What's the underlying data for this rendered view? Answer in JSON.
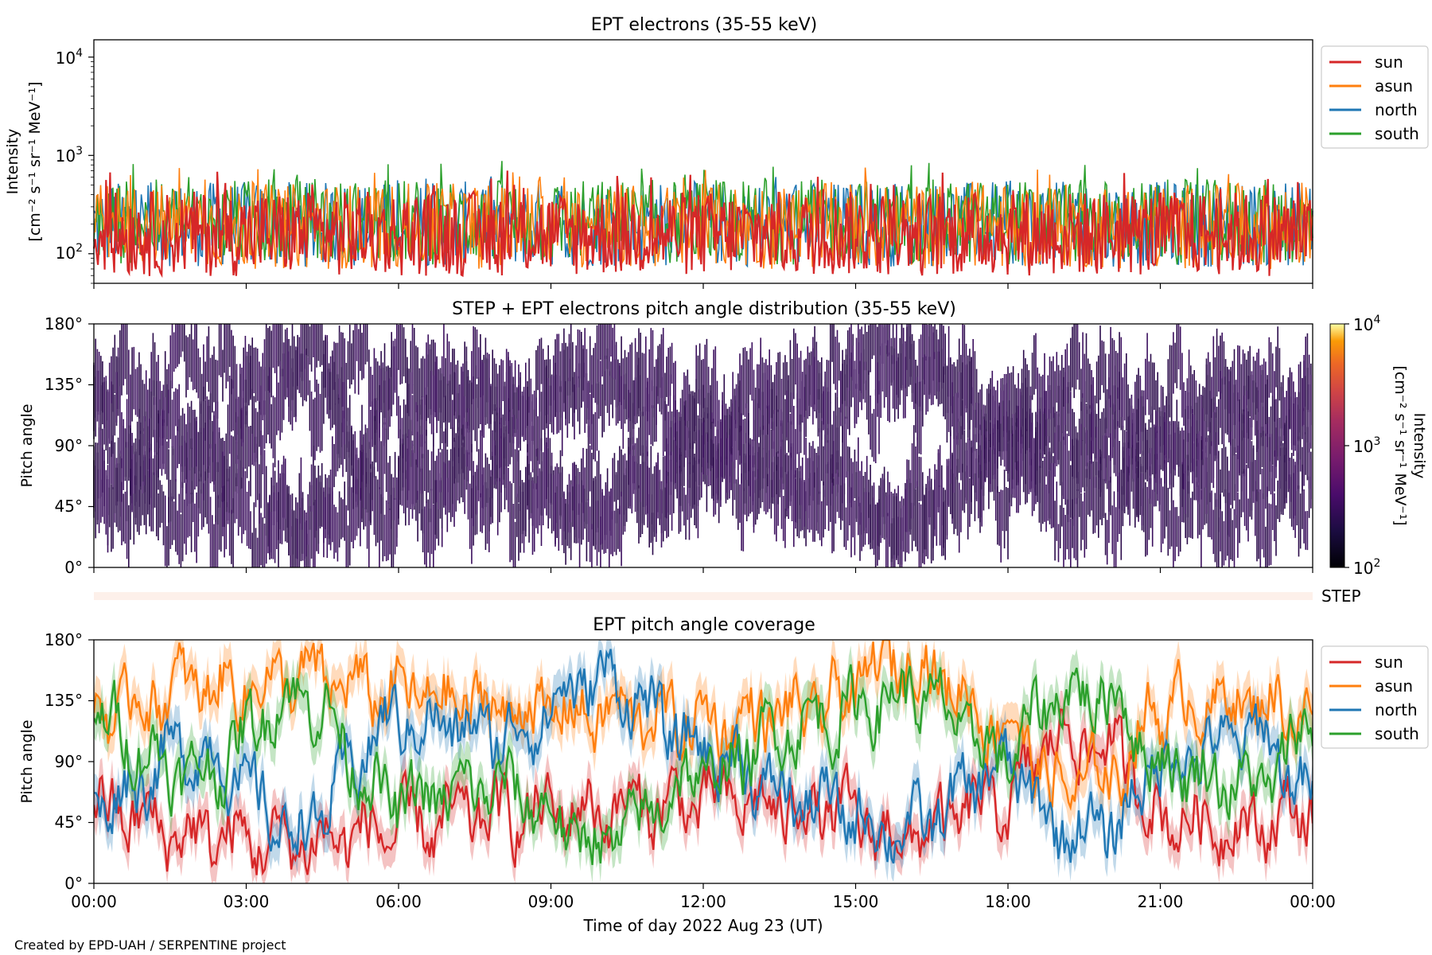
{
  "figure": {
    "footer": "Created by EPD-UAH / SERPENTINE project",
    "xlabel": "Time of day 2022 Aug 23 (UT)",
    "x_ticks": [
      "00:00",
      "03:00",
      "06:00",
      "09:00",
      "12:00",
      "15:00",
      "18:00",
      "21:00",
      "00:00"
    ]
  },
  "panel1": {
    "title": "EPT electrons (35-55 keV)",
    "ylabel_1": "Intensity",
    "ylabel_2": "[cm⁻² s⁻¹ sr⁻¹ MeV⁻¹]",
    "y_ticks": [
      {
        "base": "10",
        "exp": "2"
      },
      {
        "base": "10",
        "exp": "3"
      },
      {
        "base": "10",
        "exp": "4"
      }
    ]
  },
  "panel2": {
    "title": "STEP + EPT electrons pitch angle distribution (35-55 keV)",
    "ylabel": "Pitch angle",
    "y_ticks": [
      "0°",
      "45°",
      "90°",
      "135°",
      "180°"
    ],
    "colorbar_label_1": "Intensity",
    "colorbar_label_2": "[cm⁻² s⁻¹ sr⁻¹ MeV⁻¹]",
    "colorbar_ticks": [
      {
        "base": "10",
        "exp": "2"
      },
      {
        "base": "10",
        "exp": "3"
      },
      {
        "base": "10",
        "exp": "4"
      }
    ]
  },
  "step_strip": {
    "label": "STEP"
  },
  "panel3": {
    "title": "EPT pitch angle coverage",
    "ylabel": "Pitch angle",
    "y_ticks": [
      "0°",
      "45°",
      "90°",
      "135°",
      "180°"
    ]
  },
  "colors": {
    "sun": "#d62728",
    "asun": "#ff7f0e",
    "north": "#1f77b4",
    "south": "#2ca02c",
    "pad": "#3b0f5e"
  },
  "chart_data": [
    {
      "type": "line",
      "title": "EPT electrons (35-55 keV)",
      "xlabel": "",
      "ylabel": "Intensity [cm⁻² s⁻¹ sr⁻¹ MeV⁻¹]",
      "x_range_hours": [
        0,
        24
      ],
      "ylim": [
        50,
        15000
      ],
      "yscale": "log",
      "legend": "outside-right",
      "series": [
        {
          "name": "sun",
          "baseline": 160,
          "peak": 720
        },
        {
          "name": "asun",
          "baseline": 190,
          "peak": 760
        },
        {
          "name": "north",
          "baseline": 200,
          "peak": 620
        },
        {
          "name": "south",
          "baseline": 210,
          "peak": 920
        }
      ]
    },
    {
      "type": "heatmap",
      "title": "STEP + EPT electrons pitch angle distribution (35-55 keV)",
      "xlabel": "",
      "ylabel": "Pitch angle",
      "x_range_hours": [
        0,
        24
      ],
      "ylim": [
        0,
        180
      ],
      "colorbar": {
        "scale": "log",
        "range": [
          100,
          10000
        ],
        "cmap": "inferno"
      },
      "typical_intensity": 250
    },
    {
      "type": "line",
      "title": "EPT pitch angle coverage",
      "xlabel": "Time of day 2022 Aug 23 (UT)",
      "ylabel": "Pitch angle",
      "x_range_hours": [
        0,
        24
      ],
      "ylim": [
        0,
        180
      ],
      "legend": "outside-right",
      "series": [
        {
          "name": "sun",
          "x_hours": [
            0,
            2,
            4,
            6,
            8,
            10,
            12,
            14,
            16,
            18,
            19,
            20,
            21,
            22,
            23,
            24
          ],
          "values": [
            55,
            35,
            30,
            40,
            50,
            55,
            60,
            55,
            35,
            60,
            110,
            100,
            50,
            45,
            45,
            55
          ]
        },
        {
          "name": "asun",
          "x_hours": [
            0,
            2,
            4,
            6,
            8,
            10,
            12,
            14,
            16,
            18,
            19,
            20,
            21,
            22,
            23,
            24
          ],
          "values": [
            125,
            145,
            150,
            140,
            130,
            125,
            120,
            125,
            165,
            120,
            70,
            80,
            130,
            135,
            135,
            125
          ]
        },
        {
          "name": "north",
          "x_hours": [
            0,
            2,
            4,
            6,
            8,
            10,
            12,
            14,
            16,
            18,
            19,
            20,
            21,
            22,
            23,
            24
          ],
          "values": [
            60,
            100,
            40,
            120,
            110,
            150,
            100,
            60,
            40,
            85,
            40,
            40,
            90,
            100,
            110,
            60
          ]
        },
        {
          "name": "south",
          "x_hours": [
            0,
            2,
            4,
            6,
            8,
            10,
            12,
            14,
            16,
            18,
            19,
            20,
            21,
            22,
            23,
            24
          ],
          "values": [
            120,
            80,
            140,
            60,
            70,
            30,
            80,
            120,
            140,
            95,
            140,
            140,
            90,
            80,
            70,
            120
          ]
        }
      ]
    }
  ]
}
